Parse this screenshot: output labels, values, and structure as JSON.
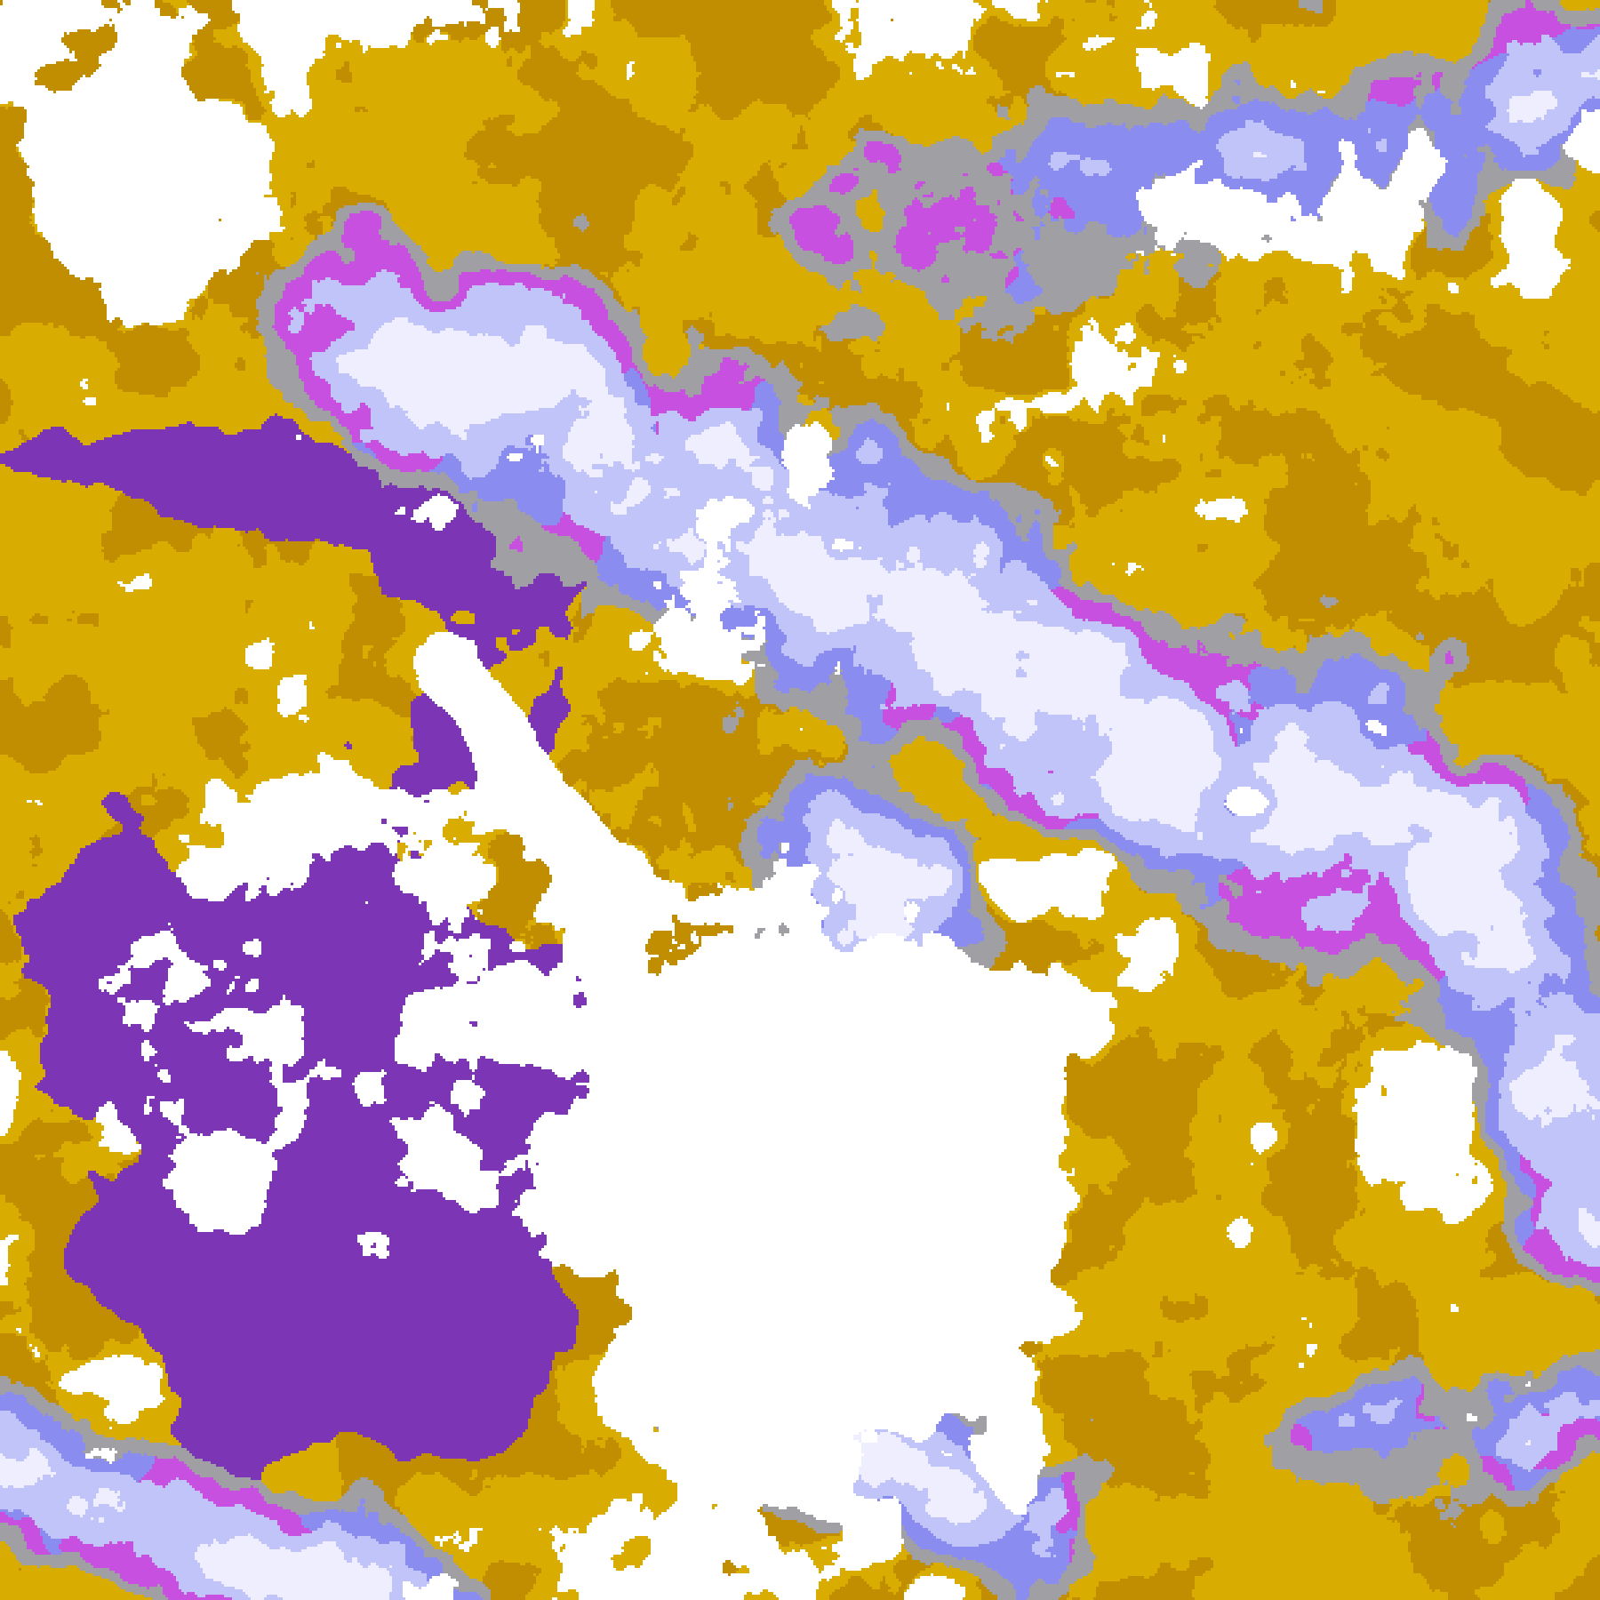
{
  "image": {
    "kind": "false-color satellite cloud imagery",
    "palette": {
      "clear": "#ffffff",
      "gold": "#d8ac00",
      "dark_gold": "#c08e00",
      "purple": "#7b35b5",
      "magenta": "#c850e0",
      "blue_violet": "#8a8cf0",
      "lavender": "#c0c4f8",
      "pale_cloud": "#eeeeff",
      "gray": "#a0a0a4"
    }
  }
}
